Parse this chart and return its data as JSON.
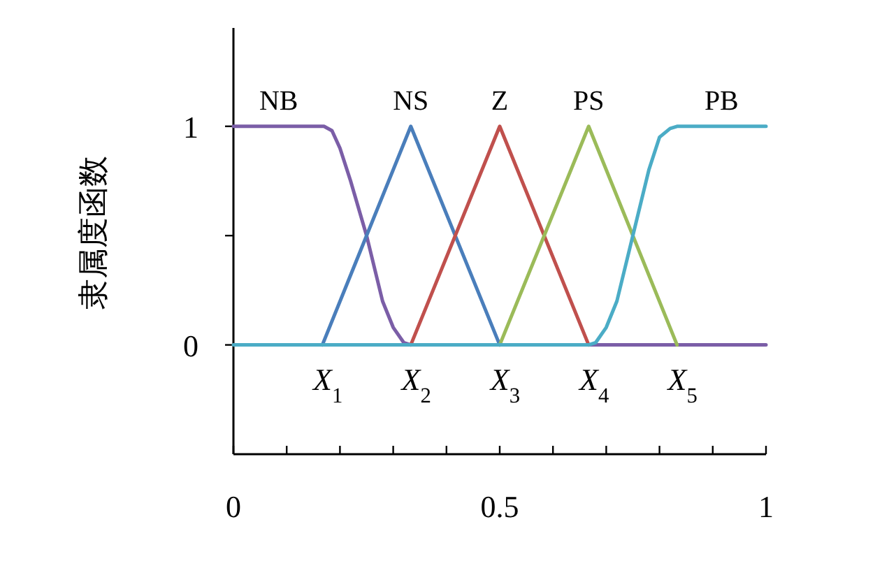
{
  "chart_data": {
    "type": "line",
    "ylabel": "隶属度函数",
    "xlim": [
      0,
      1
    ],
    "ylim": [
      -0.5,
      1.45
    ],
    "xticks": [
      0,
      {
        "value": 0.1,
        "label": null
      },
      {
        "value": 0.2,
        "label": null
      },
      {
        "value": 0.3,
        "label": null
      },
      {
        "value": 0.4,
        "label": null
      },
      0.5,
      {
        "value": 0.6,
        "label": null
      },
      {
        "value": 0.7,
        "label": null
      },
      {
        "value": 0.8,
        "label": null
      },
      {
        "value": 0.9,
        "label": null
      },
      1
    ],
    "yticks": [
      0,
      {
        "value": 0.5,
        "label": null
      },
      1
    ],
    "series": [
      {
        "name": "NB",
        "color": "#7b5ea7",
        "x": [
          0,
          0.17,
          0.185,
          0.2,
          0.22,
          0.25,
          0.28,
          0.3,
          0.32,
          0.333,
          1
        ],
        "values": [
          1,
          1,
          0.98,
          0.9,
          0.75,
          0.5,
          0.2,
          0.08,
          0.01,
          0,
          0
        ]
      },
      {
        "name": "NS",
        "color": "#4a7ebb",
        "x": [
          0.167,
          0.333,
          0.5
        ],
        "values": [
          0,
          1,
          0
        ]
      },
      {
        "name": "Z",
        "color": "#c0504d",
        "x": [
          0.333,
          0.5,
          0.667
        ],
        "values": [
          0,
          1,
          0
        ]
      },
      {
        "name": "PS",
        "color": "#9bbb59",
        "x": [
          0.5,
          0.667,
          0.833
        ],
        "values": [
          0,
          1,
          0
        ]
      },
      {
        "name": "PB",
        "color": "#4bacc6",
        "x": [
          0,
          0.667,
          0.68,
          0.7,
          0.72,
          0.75,
          0.78,
          0.8,
          0.82,
          0.833,
          1
        ],
        "values": [
          0,
          0,
          0.01,
          0.08,
          0.2,
          0.5,
          0.8,
          0.95,
          0.99,
          1,
          1
        ]
      }
    ],
    "annotations": [
      {
        "text": "X$_{1}$",
        "x": 0.167,
        "y": 0
      },
      {
        "text": "X$_{2}$",
        "x": 0.333,
        "y": 0
      },
      {
        "text": "X$_{3}$",
        "x": 0.5,
        "y": 0
      },
      {
        "text": "X$_{4}$",
        "x": 0.667,
        "y": 0
      },
      {
        "text": "X$_{5}$",
        "x": 0.833,
        "y": 0
      }
    ]
  }
}
